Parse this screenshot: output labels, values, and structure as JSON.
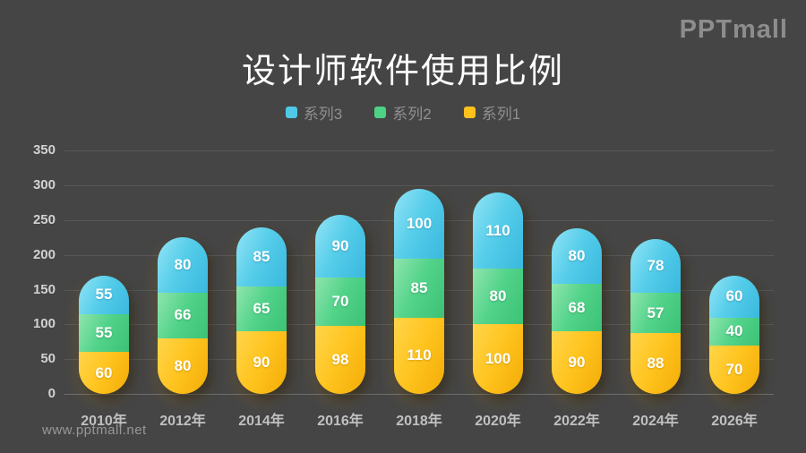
{
  "slide": {
    "background": "#454545"
  },
  "logo": {
    "text": "PPTmall"
  },
  "title": {
    "text": "设计师软件使用比例"
  },
  "watermark": {
    "text": "www.pptmall.net"
  },
  "legend": {
    "position": "top",
    "items": [
      {
        "label": "系列3",
        "color": "#4fc9e6"
      },
      {
        "label": "系列2",
        "color": "#4ed185"
      },
      {
        "label": "系列1",
        "color": "#ffc11c"
      }
    ]
  },
  "chart_data": {
    "type": "bar",
    "stacked": true,
    "title": "设计师软件使用比例",
    "categories": [
      "2010年",
      "2012年",
      "2014年",
      "2016年",
      "2018年",
      "2020年",
      "2022年",
      "2024年",
      "2026年"
    ],
    "series": [
      {
        "name": "系列1",
        "color": "#ffc41f",
        "color_light": "#ffd54a",
        "color_dark": "#f3ab06",
        "values": [
          60,
          80,
          90,
          98,
          110,
          100,
          90,
          88,
          70
        ]
      },
      {
        "name": "系列2",
        "color": "#52d38a",
        "color_light": "#8fe5ad",
        "color_dark": "#3cc276",
        "values": [
          55,
          66,
          65,
          70,
          85,
          80,
          68,
          57,
          40
        ]
      },
      {
        "name": "系列3",
        "color": "#55cdea",
        "color_light": "#93e4f5",
        "color_dark": "#3ab8de",
        "values": [
          55,
          80,
          85,
          90,
          100,
          110,
          80,
          78,
          60
        ]
      }
    ],
    "xlabel": "",
    "ylabel": "",
    "ylim": [
      0,
      350
    ],
    "yticks": [
      0,
      50,
      100,
      150,
      200,
      250,
      300,
      350
    ],
    "grid": true,
    "legend_position": "top",
    "bar_label_color": "#ffffff",
    "bar_labels_visible": true
  }
}
